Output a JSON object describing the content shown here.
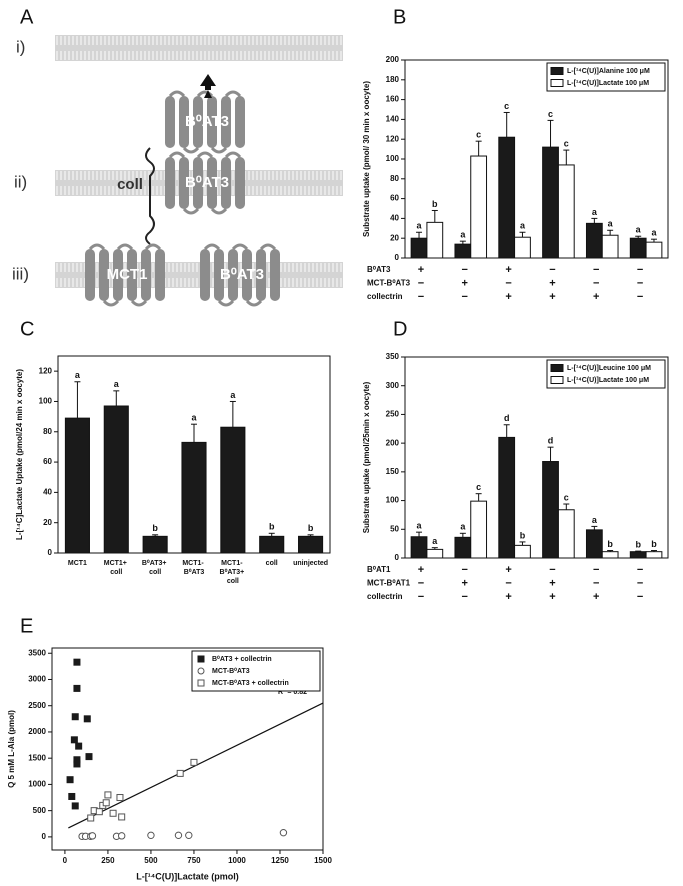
{
  "diagram": {
    "label": "A",
    "rows": [
      {
        "numeral": "i)",
        "proteins": [
          "B⁰AT3"
        ]
      },
      {
        "numeral": "ii)",
        "proteins": [
          "B⁰AT3"
        ],
        "partner": "coll"
      },
      {
        "numeral": "iii)",
        "proteins": [
          "MCT1",
          "B⁰AT3"
        ]
      }
    ]
  },
  "chart_data": [
    {
      "panel": "B",
      "type": "bar",
      "ylabel": "Substrate uptake  (pmol/ 30 min x oocyte)",
      "ylim": [
        0,
        200
      ],
      "yticks": [
        0,
        20,
        40,
        60,
        80,
        100,
        120,
        140,
        160,
        180,
        200
      ],
      "legend": "upper right",
      "series": [
        {
          "name": "L-[¹⁴C(U)]Alanine 100 μM",
          "color": "#1a1a1a",
          "values": [
            20,
            14,
            122,
            112,
            35,
            20
          ],
          "errors": [
            6,
            3,
            25,
            27,
            5,
            2
          ],
          "letters": [
            "a",
            "a",
            "c",
            "c",
            "a",
            "a"
          ]
        },
        {
          "name": "L-[¹⁴C(U)]Lactate 100 μM",
          "color": "#ffffff",
          "values": [
            36,
            103,
            21,
            94,
            23,
            16
          ],
          "errors": [
            12,
            15,
            5,
            15,
            5,
            3
          ],
          "letters": [
            "b",
            "c",
            "a",
            "c",
            "a",
            "a"
          ]
        }
      ],
      "conditions": [
        {
          "name": "B⁰AT3",
          "signs": [
            "+",
            "−",
            "+",
            "−",
            "−",
            "−"
          ]
        },
        {
          "name": "MCT-B⁰AT3",
          "signs": [
            "−",
            "+",
            "−",
            "+",
            "−",
            "−"
          ]
        },
        {
          "name": "collectrin",
          "signs": [
            "−",
            "−",
            "+",
            "+",
            "+",
            "−"
          ]
        }
      ]
    },
    {
      "panel": "C",
      "type": "bar",
      "ylabel": "L-[¹⁴C]Lactate Uptake (pmol/24 min x oocyte)",
      "ylim": [
        0,
        130
      ],
      "yticks": [
        0,
        20,
        40,
        60,
        80,
        100,
        120
      ],
      "categories": [
        "MCT1",
        "MCT1+ coll",
        "B⁰AT3+ coll",
        "MCT1- B⁰AT3",
        "MCT1- B⁰AT3+ coll",
        "coll",
        "uninjected"
      ],
      "color": "#1a1a1a",
      "values": [
        89,
        97,
        11,
        73,
        83,
        11,
        11
      ],
      "errors": [
        24,
        10,
        1,
        12,
        17,
        2,
        1
      ],
      "letters": [
        "a",
        "a",
        "b",
        "a",
        "a",
        "b",
        "b"
      ]
    },
    {
      "panel": "D",
      "type": "bar",
      "ylabel": "Substrate uptake (pmol/25min x oocyte)",
      "ylim": [
        0,
        350
      ],
      "yticks": [
        0,
        50,
        100,
        150,
        200,
        250,
        300,
        350
      ],
      "legend": "upper right",
      "series": [
        {
          "name": "L-[¹⁴C(U)]Leucine 100 μM",
          "color": "#1a1a1a",
          "values": [
            37,
            36,
            210,
            168,
            49,
            11
          ],
          "errors": [
            8,
            7,
            22,
            25,
            6,
            1
          ],
          "letters": [
            "a",
            "a",
            "d",
            "d",
            "a",
            "b"
          ]
        },
        {
          "name": "L-[¹⁴C(U)]Lactate 100 μM",
          "color": "#ffffff",
          "values": [
            15,
            99,
            22,
            84,
            11,
            11
          ],
          "errors": [
            3,
            13,
            6,
            10,
            2,
            2
          ],
          "letters": [
            "a",
            "c",
            "b",
            "c",
            "b",
            "b"
          ]
        }
      ],
      "conditions": [
        {
          "name": "B⁰AT1",
          "signs": [
            "+",
            "−",
            "+",
            "−",
            "−",
            "−"
          ]
        },
        {
          "name": "MCT-B⁰AT1",
          "signs": [
            "−",
            "+",
            "−",
            "+",
            "−",
            "−"
          ]
        },
        {
          "name": "collectrin",
          "signs": [
            "−",
            "−",
            "+",
            "+",
            "+",
            "−"
          ]
        }
      ]
    },
    {
      "panel": "E",
      "type": "scatter",
      "xlabel": "L-[¹⁴C(U)]Lactate (pmol)",
      "ylabel": "Q 5 mM L-Ala (pmol)",
      "xlim": [
        -75,
        1500
      ],
      "xticks": [
        0,
        250,
        500,
        750,
        1000,
        1250,
        1500
      ],
      "ylim": [
        -250,
        3600
      ],
      "yticks": [
        0,
        500,
        1000,
        1500,
        2000,
        2500,
        3000,
        3500
      ],
      "legend": "upper right",
      "series": [
        {
          "name": "B⁰AT3 + collectrin",
          "marker": "square",
          "color": "#1a1a1a",
          "fill": "#1a1a1a",
          "x": [
            70,
            70,
            130,
            60,
            55,
            80,
            70,
            70,
            140,
            30,
            40,
            60
          ],
          "values": [
            3330,
            2830,
            2250,
            2290,
            1850,
            1730,
            1470,
            1390,
            1530,
            1090,
            770,
            590
          ]
        },
        {
          "name": "MCT-B⁰AT3",
          "marker": "circle",
          "color": "#555555",
          "fill": "#ffffff",
          "x": [
            100,
            120,
            150,
            160,
            300,
            330,
            500,
            660,
            720,
            1270
          ],
          "values": [
            10,
            10,
            10,
            20,
            10,
            20,
            30,
            30,
            30,
            80
          ]
        },
        {
          "name": "MCT-B⁰AT3 + collectrin",
          "marker": "square",
          "color": "#555555",
          "fill": "#ffffff",
          "x": [
            150,
            170,
            200,
            220,
            240,
            250,
            280,
            320,
            330,
            670,
            750
          ],
          "values": [
            360,
            500,
            480,
            600,
            650,
            800,
            450,
            750,
            380,
            1210,
            1420
          ]
        }
      ],
      "fit": {
        "x": [
          20,
          1500
        ],
        "y": [
          170,
          2550
        ]
      },
      "annotation": "R² = 0.82"
    }
  ]
}
